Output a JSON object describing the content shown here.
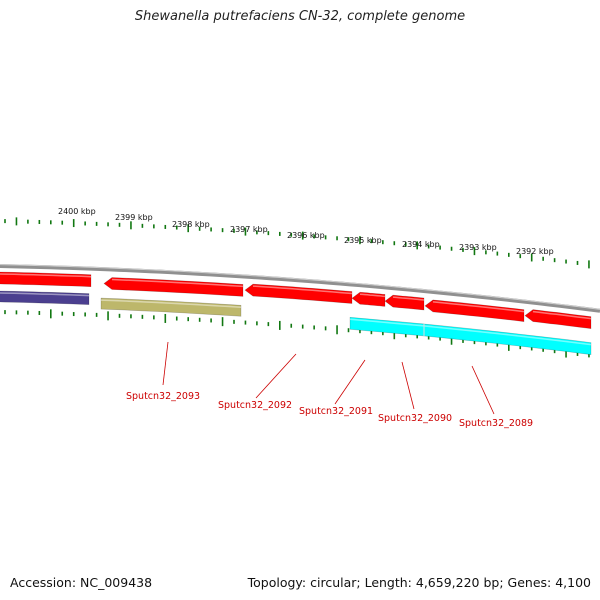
{
  "title": "Shewanella putrefaciens CN-32, complete genome",
  "accession": "Accession: NC_009438",
  "summary": "Topology: circular; Length: 4,659,220 bp; Genes: 4,100",
  "colors": {
    "forward": "#ff0000",
    "reverse_a": "#4b3f8f",
    "reverse_b": "#bdb76b",
    "reverse_c": "#00ffff",
    "tick": "#117711",
    "backbone": "#909090",
    "gene_label": "#cc0000"
  },
  "kbp_labels": [
    "2400 kbp",
    "2399 kbp",
    "2398 kbp",
    "2397 kbp",
    "2396 kbp",
    "2395 kbp",
    "2394 kbp",
    "2393 kbp",
    "2392 kbp"
  ],
  "gene_labels": [
    "Sputcn32_2093",
    "Sputcn32_2092",
    "Sputcn32_2091",
    "Sputcn32_2090",
    "Sputcn32_2089"
  ]
}
